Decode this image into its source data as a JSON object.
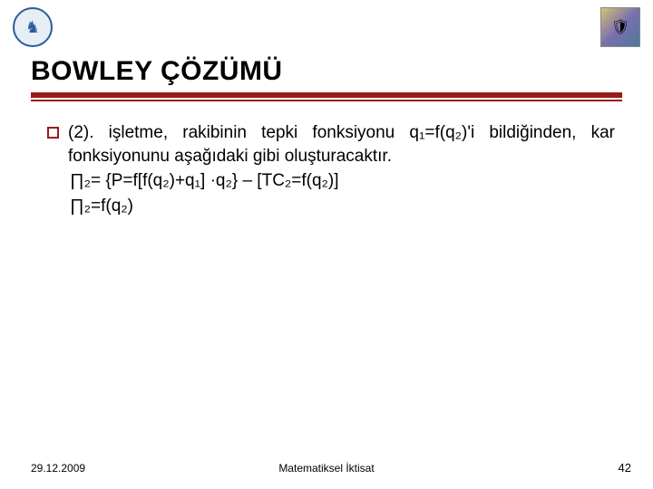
{
  "logos": {
    "left_symbol": "♞",
    "right_symbol": "🛡"
  },
  "title": "BOWLEY ÇÖZÜMÜ",
  "paragraph": "(2). işletme, rakibinin tepki fonksiyonu q₁=f(q₂)'i bildiğinden, kar fonksiyonunu aşağıdaki gibi oluşturacaktır.",
  "formula1": "∏₂= {P=f[f(q₂)+q₁] ·q₂} – [TC₂=f(q₂)]",
  "formula2": "∏₂=f(q₂)",
  "footer": {
    "date": "29.12.2009",
    "center": "Matematiksel İktisat",
    "page": "42"
  },
  "colors": {
    "accent": "#9a1b1b",
    "text": "#000000",
    "background": "#ffffff",
    "logo_left_border": "#2a5c9a"
  }
}
